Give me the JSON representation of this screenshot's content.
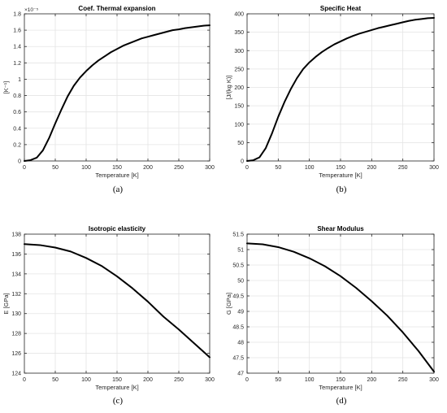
{
  "chart_data": [
    {
      "type": "line",
      "panel_label": "(a)",
      "title": "Coef. Thermal expansion",
      "xlabel": "Temperature [K]",
      "ylabel": "[K⁻¹]",
      "xlim": [
        0,
        300
      ],
      "ylim": [
        0,
        1.8
      ],
      "x_ticks": [
        "0",
        "50",
        "100",
        "150",
        "200",
        "250",
        "300"
      ],
      "y_ticks": [
        "0",
        "0.2",
        "0.4",
        "0.6",
        "0.8",
        "1",
        "1.2",
        "1.4",
        "1.6",
        "1.8"
      ],
      "y_multiplier": "×10⁻⁵",
      "grid": true,
      "series": [
        {
          "x": [
            0,
            10,
            20,
            30,
            40,
            50,
            60,
            70,
            80,
            90,
            100,
            110,
            120,
            130,
            140,
            150,
            160,
            170,
            180,
            190,
            200,
            210,
            220,
            230,
            240,
            250,
            260,
            270,
            280,
            290,
            300
          ],
          "values": [
            0,
            0.01,
            0.04,
            0.13,
            0.28,
            0.46,
            0.63,
            0.79,
            0.92,
            1.02,
            1.1,
            1.17,
            1.23,
            1.28,
            1.33,
            1.37,
            1.41,
            1.44,
            1.47,
            1.5,
            1.52,
            1.54,
            1.56,
            1.58,
            1.6,
            1.61,
            1.625,
            1.635,
            1.645,
            1.655,
            1.66
          ]
        }
      ]
    },
    {
      "type": "line",
      "panel_label": "(b)",
      "title": "Specific Heat",
      "xlabel": "Temperature [K]",
      "ylabel": "[J/(kg K)]",
      "xlim": [
        0,
        300
      ],
      "ylim": [
        0,
        400
      ],
      "x_ticks": [
        "0",
        "50",
        "100",
        "150",
        "200",
        "250",
        "300"
      ],
      "y_ticks": [
        "0",
        "50",
        "100",
        "150",
        "200",
        "250",
        "300",
        "350",
        "400"
      ],
      "grid": true,
      "series": [
        {
          "x": [
            0,
            10,
            20,
            30,
            40,
            50,
            60,
            70,
            80,
            90,
            100,
            110,
            120,
            130,
            140,
            150,
            160,
            170,
            180,
            190,
            200,
            210,
            220,
            230,
            240,
            250,
            260,
            270,
            280,
            290,
            300
          ],
          "values": [
            0,
            2,
            10,
            35,
            75,
            120,
            160,
            195,
            225,
            250,
            268,
            283,
            296,
            307,
            317,
            325,
            333,
            340,
            346,
            351,
            356,
            361,
            365,
            369,
            373,
            377,
            381,
            384,
            386,
            388,
            389
          ]
        }
      ]
    },
    {
      "type": "line",
      "panel_label": "(c)",
      "title": "Isotropic elasticity",
      "xlabel": "Temperature [K]",
      "ylabel": "E [GPa]",
      "xlim": [
        0,
        300
      ],
      "ylim": [
        124,
        138
      ],
      "x_ticks": [
        "0",
        "50",
        "100",
        "150",
        "200",
        "250",
        "300"
      ],
      "y_ticks": [
        "124",
        "126",
        "128",
        "130",
        "132",
        "134",
        "136",
        "138"
      ],
      "grid": true,
      "series": [
        {
          "x": [
            0,
            25,
            50,
            75,
            100,
            125,
            150,
            175,
            200,
            225,
            250,
            275,
            300
          ],
          "values": [
            137.0,
            136.9,
            136.65,
            136.25,
            135.6,
            134.8,
            133.75,
            132.55,
            131.2,
            129.7,
            128.4,
            127.0,
            125.6
          ]
        }
      ]
    },
    {
      "type": "line",
      "panel_label": "(d)",
      "title": "Shear Modulus",
      "xlabel": "Temperature [K]",
      "ylabel": "G [GPa]",
      "xlim": [
        0,
        300
      ],
      "ylim": [
        47,
        51.5
      ],
      "x_ticks": [
        "0",
        "50",
        "100",
        "150",
        "200",
        "250",
        "300"
      ],
      "y_ticks": [
        "47",
        "47.5",
        "48",
        "48.5",
        "49",
        "49.5",
        "50",
        "50.5",
        "51",
        "51.5"
      ],
      "grid": true,
      "series": [
        {
          "x": [
            0,
            25,
            50,
            75,
            100,
            125,
            150,
            175,
            200,
            225,
            250,
            275,
            300
          ],
          "values": [
            51.2,
            51.17,
            51.08,
            50.93,
            50.72,
            50.46,
            50.14,
            49.76,
            49.33,
            48.86,
            48.32,
            47.72,
            47.05
          ]
        }
      ]
    }
  ]
}
